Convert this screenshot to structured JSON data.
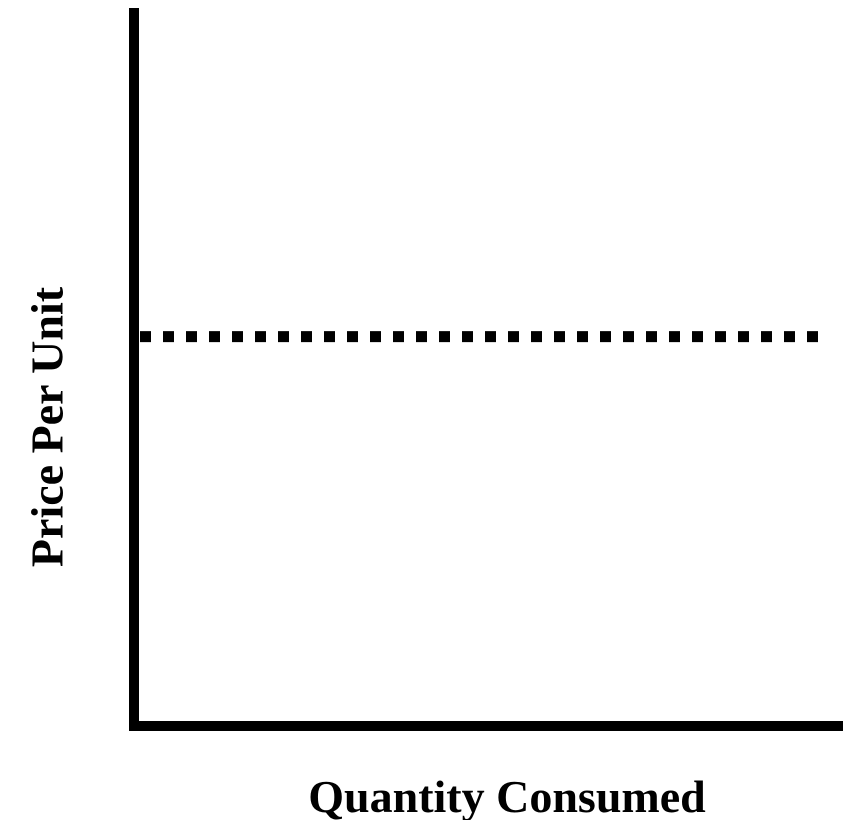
{
  "chart_data": {
    "type": "line",
    "xlabel": "Quantity Consumed",
    "ylabel": "Price Per Unit",
    "xlim": [
      0,
      1
    ],
    "ylim": [
      0,
      1
    ],
    "grid": false,
    "series": [
      {
        "style": "dotted",
        "color": "#000000",
        "x": [
          0,
          1
        ],
        "y": [
          0.54,
          0.54
        ]
      }
    ]
  }
}
